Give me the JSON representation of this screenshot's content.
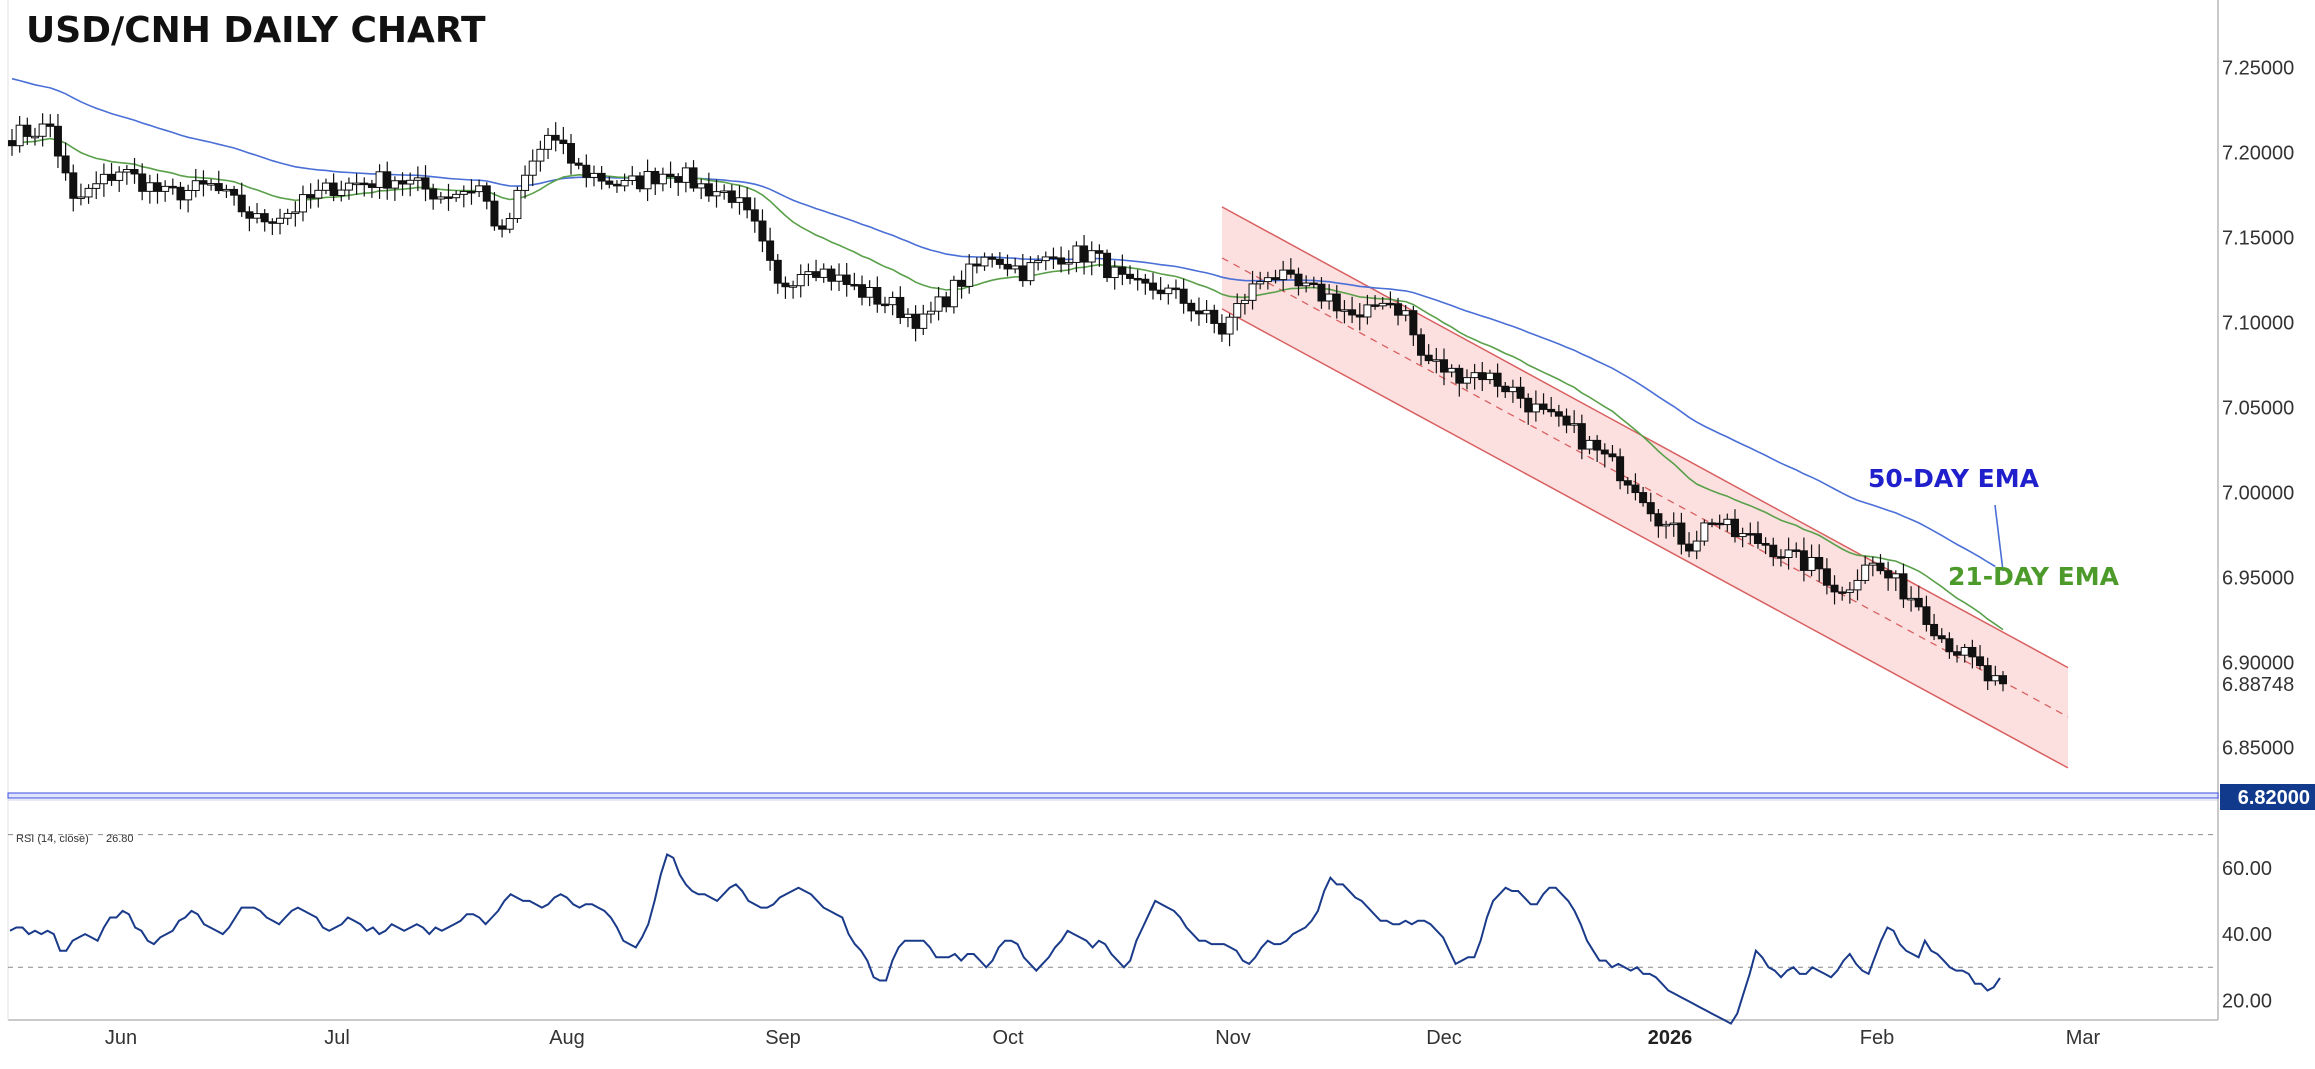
{
  "chart_data": {
    "type": "candlestick",
    "title": "USD/CNH DAILY CHART",
    "colors": {
      "up_candle": "#ffffff",
      "down_candle": "#111111",
      "ema21": "#5aa04a",
      "ema50": "#4a6fd6",
      "ema21_label": "#4c9a2a",
      "ema50_label": "#1f1fcc",
      "channel_fill": "#fbdada",
      "channel_line": "#d96060",
      "support_line": "#3a4ee0",
      "rsi_line": "#1a3a8a",
      "last_price_tag": "#123a8c"
    },
    "price_axis": {
      "ticks": [
        "7.25000",
        "7.20000",
        "7.15000",
        "7.10000",
        "7.05000",
        "7.00000",
        "6.95000",
        "6.90000",
        "6.85000"
      ],
      "range": [
        6.825,
        7.285
      ],
      "last_price_label": "6.88748",
      "last_price": 6.8875,
      "support_label": "6.82000",
      "support": 6.82
    },
    "time_axis": {
      "labels": [
        "Jun",
        "Jul",
        "Aug",
        "Sep",
        "Oct",
        "Nov",
        "Dec",
        "2026",
        "Feb",
        "Mar"
      ],
      "bold_label": "2026"
    },
    "series_labels": {
      "ema50": "50-DAY EMA",
      "ema21": "21-DAY EMA"
    },
    "channel": {
      "start_index": 171,
      "end_index": 270,
      "upper": [
        7.168,
        6.897
      ],
      "lower": [
        7.108,
        6.838
      ],
      "mid": [
        7.138,
        6.868
      ]
    },
    "rsi": {
      "legend_name": "RSI (14, close)",
      "legend_value": "26.80",
      "ticks": [
        "60.00",
        "40.00",
        "20.00"
      ],
      "range": [
        15,
        72
      ],
      "levels": [
        70,
        30
      ],
      "values": [
        41,
        42,
        42,
        40,
        41,
        40,
        41,
        40,
        35,
        35,
        38,
        39,
        40,
        39,
        38,
        42,
        45,
        45,
        47,
        46,
        42,
        41,
        38,
        37,
        39,
        40,
        41,
        44,
        45,
        47,
        46,
        43,
        42,
        41,
        40,
        42,
        45,
        48,
        48,
        48,
        47,
        45,
        44,
        43,
        45,
        47,
        48,
        47,
        46,
        45,
        42,
        41,
        42,
        43,
        45,
        44,
        43,
        41,
        42,
        40,
        41,
        43,
        42,
        41,
        42,
        43,
        42,
        40,
        42,
        41,
        42,
        43,
        44,
        46,
        46,
        45,
        43,
        45,
        47,
        50,
        52,
        51,
        50,
        50,
        49,
        48,
        49,
        51,
        52,
        51,
        49,
        48,
        49,
        49,
        48,
        47,
        45,
        42,
        38,
        37,
        36,
        39,
        43,
        50,
        58,
        64,
        63,
        58,
        55,
        53,
        52,
        52,
        51,
        50,
        52,
        54,
        55,
        53,
        50,
        49,
        48,
        48,
        49,
        51,
        52,
        53,
        54,
        53,
        52,
        50,
        48,
        47,
        46,
        45,
        40,
        37,
        35,
        32,
        27,
        26,
        26,
        32,
        36,
        38,
        38,
        38,
        38,
        36,
        33,
        33,
        33,
        34,
        32,
        34,
        34,
        32,
        30,
        32,
        36,
        38,
        38,
        37,
        33,
        31,
        29,
        31,
        33,
        36,
        38,
        41,
        40,
        39,
        38,
        36,
        38,
        37,
        34,
        32,
        30,
        32,
        38,
        42,
        46,
        50,
        49,
        48,
        47,
        45,
        42,
        40,
        38,
        38,
        37,
        37,
        37,
        36,
        35,
        32,
        31,
        33,
        36,
        38,
        37,
        37,
        38,
        40,
        41,
        42,
        44,
        47,
        53,
        57,
        55,
        55,
        53,
        51,
        50,
        48,
        46,
        44,
        44,
        43,
        43,
        44,
        43,
        44,
        44,
        43,
        41,
        39,
        35,
        31,
        32,
        33,
        33,
        38,
        45,
        50,
        52,
        54,
        53,
        53,
        51,
        49,
        49,
        52,
        54,
        54,
        52,
        50,
        47,
        43,
        38,
        35,
        32,
        32,
        30,
        31,
        30,
        29,
        30,
        28,
        28,
        27,
        25,
        23,
        22,
        21,
        20,
        19,
        18,
        17,
        16,
        15,
        14,
        13,
        16,
        22,
        28,
        35,
        33,
        30,
        29,
        27,
        29,
        30,
        28,
        28,
        30,
        29,
        28,
        27,
        29,
        32,
        34,
        31,
        29,
        28,
        33,
        38,
        42,
        41,
        37,
        35,
        34,
        33,
        38,
        35,
        34,
        32,
        30,
        29,
        29,
        28,
        25,
        25,
        23,
        24,
        26.8
      ]
    }
  }
}
